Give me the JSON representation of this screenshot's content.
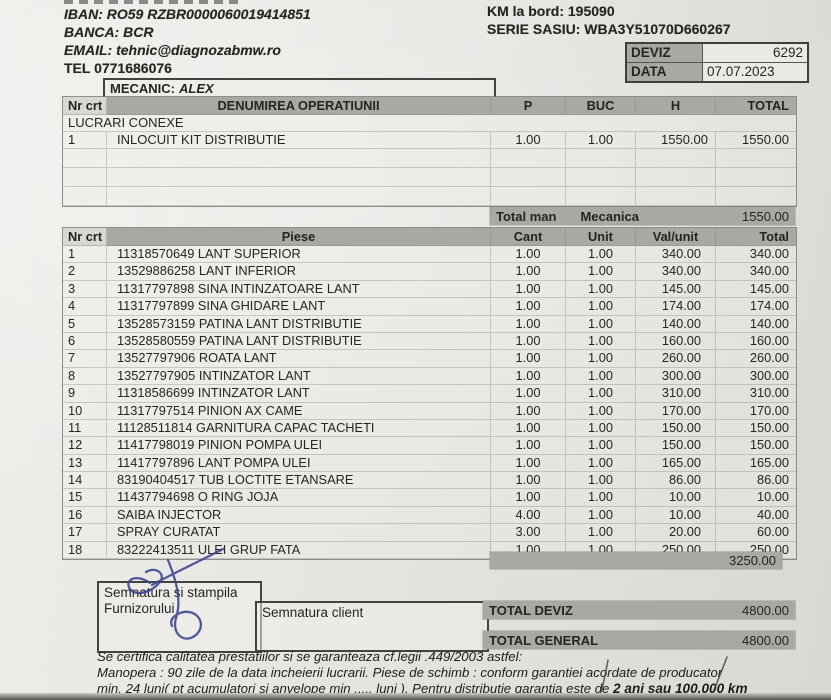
{
  "colors": {
    "paper": "#e8e7e3",
    "band_gray": "#a9a8a4",
    "ink": "#26251f",
    "pen_blue": "#3b4490",
    "pen_dark": "#44423e"
  },
  "header": {
    "iban": "IBAN: RO59 RZBR0000060019414851",
    "banca": "BANCA: BCR",
    "email": "EMAIL: tehnic@diagnozabmw.ro",
    "tel": "TEL 0771686076",
    "km": "KM la bord: 195090",
    "serie": "SERIE SASIU: WBA3Y51070D660267",
    "deviz_label": "DEVIZ",
    "deviz_value": "6292",
    "data_label": "DATA",
    "data_value": "07.07.2023",
    "mecanic_label": "MECANIC:",
    "mecanic_name": "ALEX"
  },
  "operations_table": {
    "headers": {
      "nr": "Nr crt",
      "name": "DENUMIREA OPERATIUNII",
      "p": "P",
      "buc": "BUC",
      "h": "H",
      "total": "TOTAL"
    },
    "section": "LUCRARI CONEXE",
    "rows": [
      {
        "nr": "1",
        "name": "INLOCUIT KIT DISTRIBUTIE",
        "p": "1.00",
        "buc": "1.00",
        "h": "1550.00",
        "total": "1550.00"
      }
    ],
    "summary": {
      "label": "Total man",
      "dept": "Mecanica",
      "value": "1550.00"
    }
  },
  "parts_table": {
    "headers": {
      "nr": "Nr crt",
      "name": "Piese",
      "cant": "Cant",
      "unit": "Unit",
      "val": "Val/unit",
      "total": "Total"
    },
    "rows": [
      {
        "nr": "1",
        "name": "11318570649 LANT SUPERIOR",
        "cant": "1.00",
        "unit": "1.00",
        "val": "340.00",
        "total": "340.00"
      },
      {
        "nr": "2",
        "name": "13529886258 LANT INFERIOR",
        "cant": "1.00",
        "unit": "1.00",
        "val": "340.00",
        "total": "340.00"
      },
      {
        "nr": "3",
        "name": "11317797898  SINA INTINZATOARE LANT",
        "cant": "1.00",
        "unit": "1.00",
        "val": "145.00",
        "total": "145.00"
      },
      {
        "nr": "4",
        "name": "11317797899 SINA GHIDARE LANT",
        "cant": "1.00",
        "unit": "1.00",
        "val": "174.00",
        "total": "174.00"
      },
      {
        "nr": "5",
        "name": "13528573159 PATINA LANT DISTRIBUTIE",
        "cant": "1.00",
        "unit": "1.00",
        "val": "140.00",
        "total": "140.00"
      },
      {
        "nr": "6",
        "name": "13528580559 PATINA LANT DISTRIBUTIE",
        "cant": "1.00",
        "unit": "1.00",
        "val": "160.00",
        "total": "160.00"
      },
      {
        "nr": "7",
        "name": "13527797906 ROATA LANT",
        "cant": "1.00",
        "unit": "1.00",
        "val": "260.00",
        "total": "260.00"
      },
      {
        "nr": "8",
        "name": "13527797905 INTINZATOR LANT",
        "cant": "1.00",
        "unit": "1.00",
        "val": "300.00",
        "total": "300.00"
      },
      {
        "nr": "9",
        "name": "11318586699 INTINZATOR LANT",
        "cant": "1.00",
        "unit": "1.00",
        "val": "310.00",
        "total": "310.00"
      },
      {
        "nr": "10",
        "name": "11317797514 PINION AX CAME",
        "cant": "1.00",
        "unit": "1.00",
        "val": "170.00",
        "total": "170.00"
      },
      {
        "nr": "11",
        "name": "11128511814 GARNITURA CAPAC TACHETI",
        "cant": "1.00",
        "unit": "1.00",
        "val": "150.00",
        "total": "150.00"
      },
      {
        "nr": "12",
        "name": "11417798019 PINION POMPA ULEI",
        "cant": "1.00",
        "unit": "1.00",
        "val": "150.00",
        "total": "150.00"
      },
      {
        "nr": "13",
        "name": "11417797896 LANT POMPA ULEI",
        "cant": "1.00",
        "unit": "1.00",
        "val": "165.00",
        "total": "165.00"
      },
      {
        "nr": "14",
        "name": "83190404517 TUB LOCTITE ETANSARE",
        "cant": "1.00",
        "unit": "1.00",
        "val": "86.00",
        "total": "86.00"
      },
      {
        "nr": "15",
        "name": "11437794698 O RING JOJA",
        "cant": "1.00",
        "unit": "1.00",
        "val": "10.00",
        "total": "10.00"
      },
      {
        "nr": "16",
        "name": "SAIBA INJECTOR",
        "cant": "4.00",
        "unit": "1.00",
        "val": "10.00",
        "total": "40.00"
      },
      {
        "nr": "17",
        "name": "SPRAY CURATAT",
        "cant": "3.00",
        "unit": "1.00",
        "val": "20.00",
        "total": "60.00"
      },
      {
        "nr": "18",
        "name": "83222413511 ULEI GRUP FATA",
        "cant": "1.00",
        "unit": "1.00",
        "val": "250.00",
        "total": "250.00"
      }
    ],
    "total": "3250.00"
  },
  "signatures": {
    "supplier_line1": "Semnatura si stampila",
    "supplier_line2": "Furnizorului",
    "client": "Semnatura client"
  },
  "totals": {
    "deviz_label": "TOTAL DEVIZ",
    "deviz_value": "4800.00",
    "general_label": "TOTAL GENERAL",
    "general_value": "4800.00"
  },
  "footer": {
    "line1": "Se certifica calitatea prestatiilor si se garanteaza cf.legii .449/2003 astfel:",
    "line2": "Manopera : 90 zile de la data incheierii lucrarii. Piese de schimb : conform garantiei acordate de producator",
    "line3_plain": "min. 24 luni( pt acumulatori si anvelope min ..... luni ).  Pentru distributie garantia este de ",
    "line3_bold": "2 ani sau 100.000 km"
  }
}
